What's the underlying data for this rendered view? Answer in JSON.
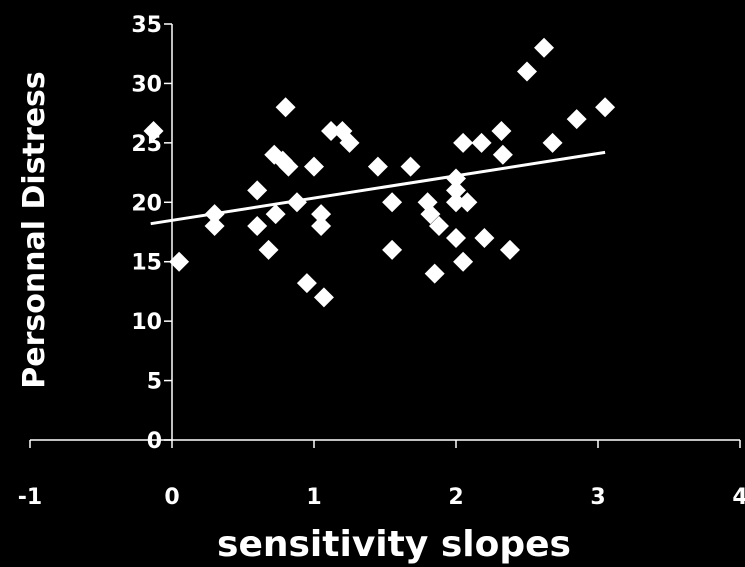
{
  "chart_data": {
    "type": "scatter",
    "title": "",
    "xlabel": "sensitivity slopes",
    "ylabel": "Personnal Distress",
    "xlim": [
      -1,
      4
    ],
    "ylim": [
      0,
      35
    ],
    "xticks": [
      -1,
      0,
      1,
      2,
      3,
      4
    ],
    "yticks": [
      0,
      5,
      10,
      15,
      20,
      25,
      30,
      35
    ],
    "grid": false,
    "legend": "none",
    "colors": {
      "background": "#000000",
      "points": "#ffffff",
      "trendline": "#ffffff",
      "axes": "#ffffff"
    },
    "series": [
      {
        "points": [
          [
            -0.13,
            26
          ],
          [
            0.05,
            15
          ],
          [
            0.3,
            19
          ],
          [
            0.3,
            18
          ],
          [
            0.6,
            21
          ],
          [
            0.6,
            18
          ],
          [
            0.68,
            16
          ],
          [
            0.72,
            24
          ],
          [
            0.73,
            19
          ],
          [
            0.78,
            23.5
          ],
          [
            0.8,
            28
          ],
          [
            0.82,
            23
          ],
          [
            0.88,
            20
          ],
          [
            0.95,
            13.2
          ],
          [
            1.0,
            23
          ],
          [
            1.05,
            19
          ],
          [
            1.05,
            18
          ],
          [
            1.07,
            12
          ],
          [
            1.12,
            26
          ],
          [
            1.2,
            26
          ],
          [
            1.25,
            25
          ],
          [
            1.45,
            23
          ],
          [
            1.55,
            20
          ],
          [
            1.55,
            16
          ],
          [
            1.68,
            23
          ],
          [
            1.8,
            20
          ],
          [
            1.82,
            19
          ],
          [
            1.85,
            14
          ],
          [
            1.88,
            18
          ],
          [
            2.0,
            22
          ],
          [
            2.0,
            21
          ],
          [
            2.0,
            20
          ],
          [
            2.0,
            17
          ],
          [
            2.05,
            25
          ],
          [
            2.05,
            15
          ],
          [
            2.08,
            20
          ],
          [
            2.18,
            25
          ],
          [
            2.2,
            17
          ],
          [
            2.32,
            26
          ],
          [
            2.33,
            24
          ],
          [
            2.38,
            16
          ],
          [
            2.5,
            31
          ],
          [
            2.62,
            33
          ],
          [
            2.68,
            25
          ],
          [
            2.85,
            27
          ],
          [
            3.05,
            28
          ]
        ]
      }
    ],
    "trendline": {
      "x": [
        -0.15,
        3.05
      ],
      "y": [
        18.2,
        24.2
      ]
    }
  }
}
